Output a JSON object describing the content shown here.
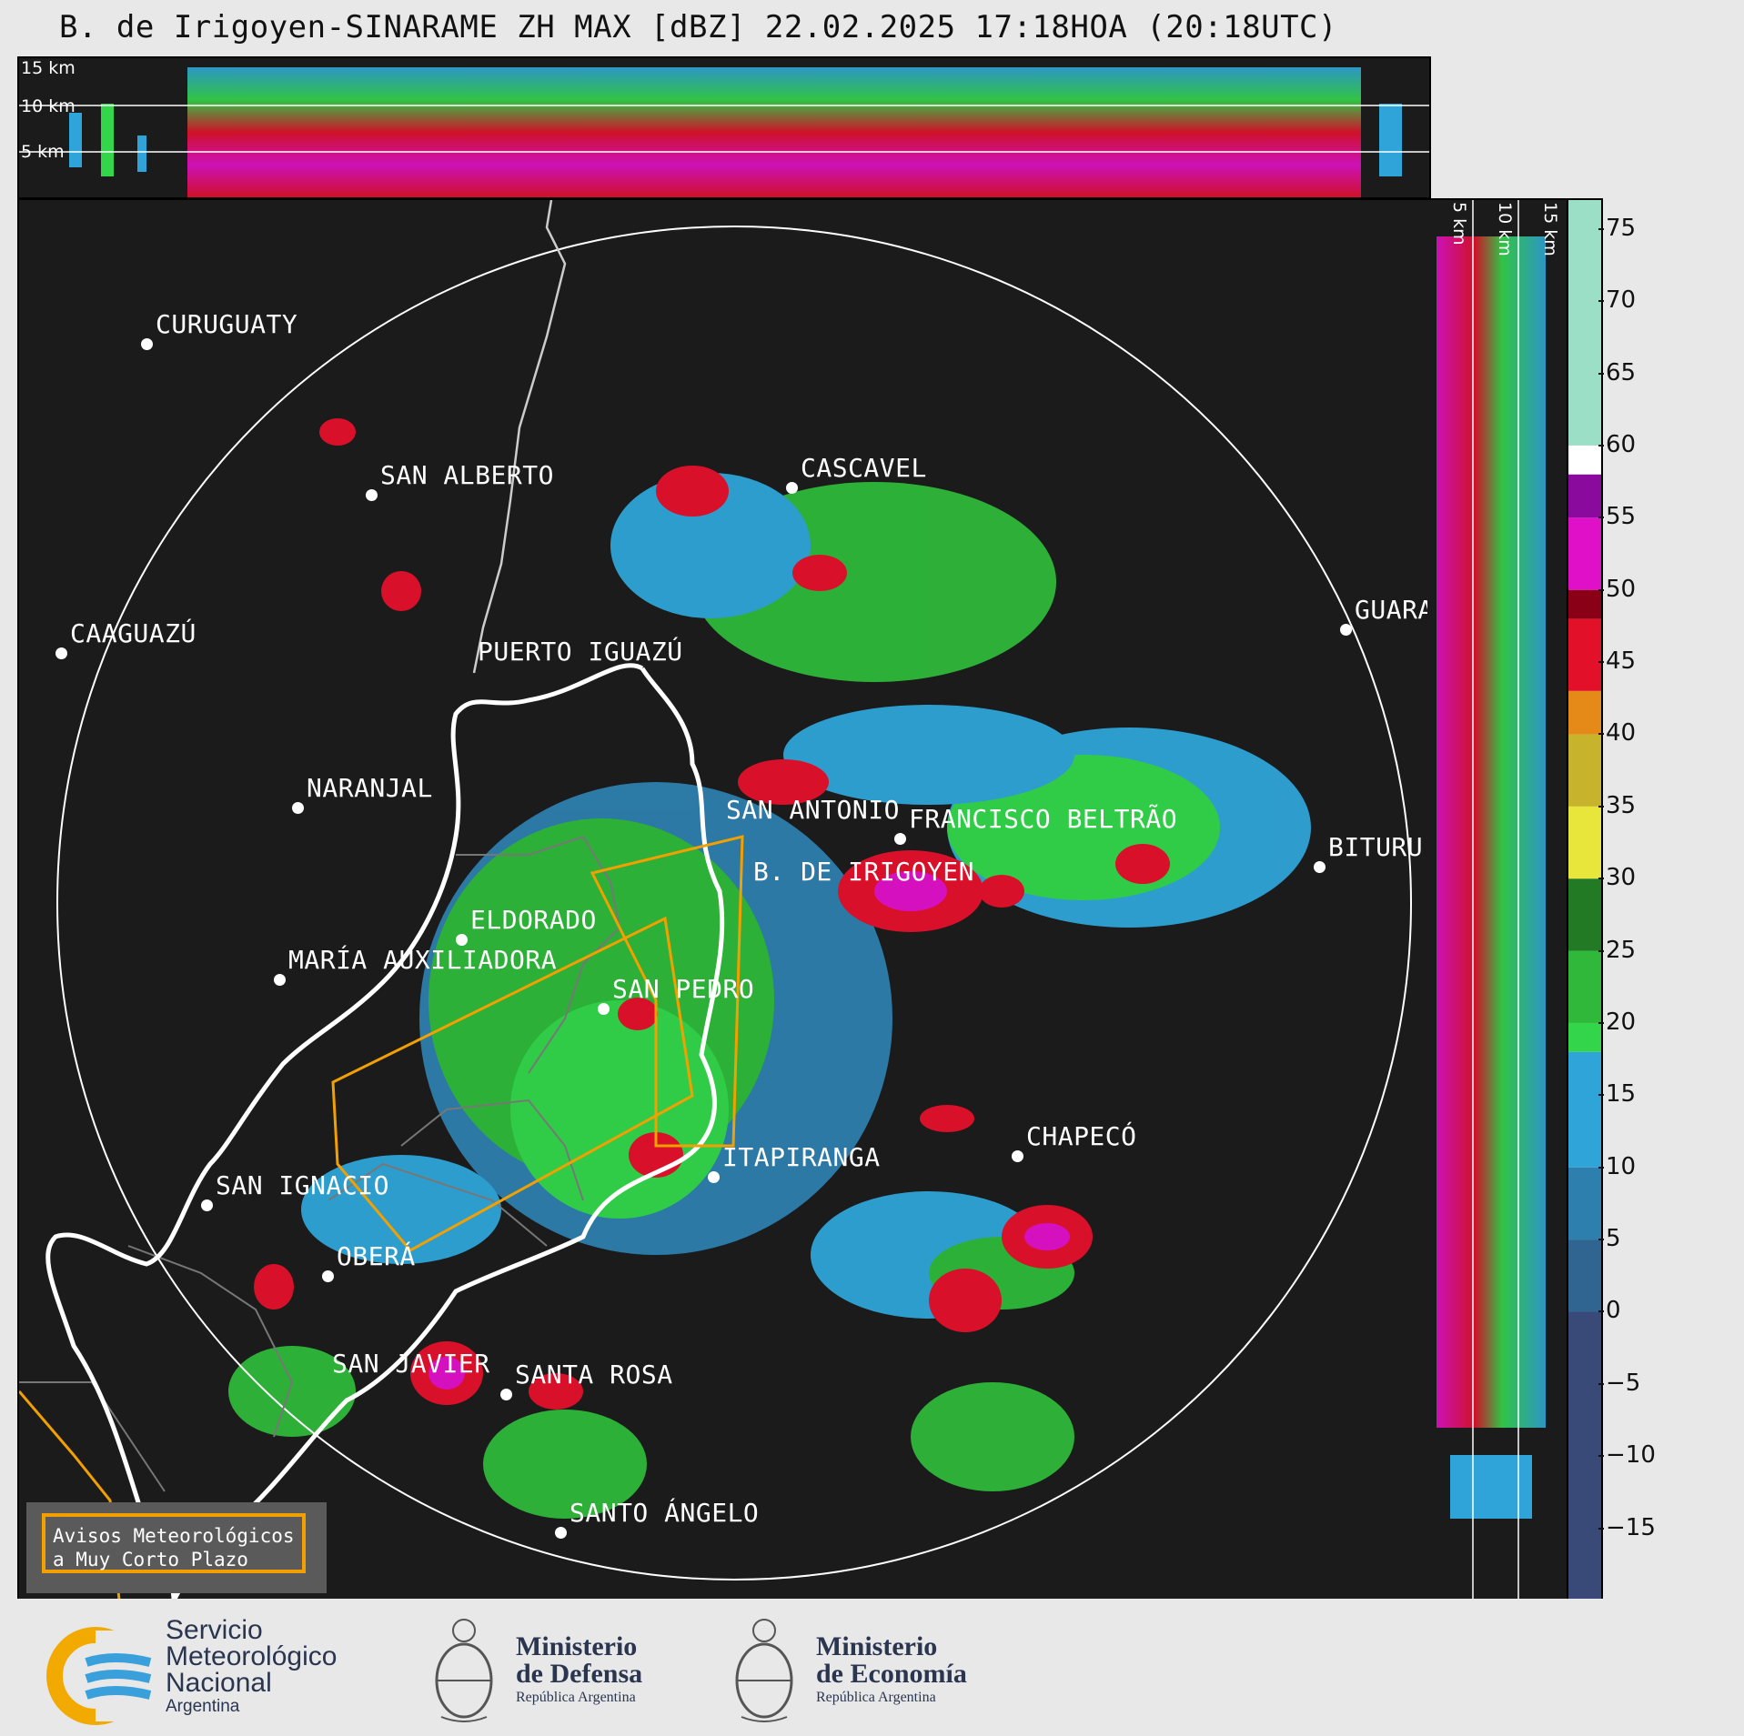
{
  "title": "B. de Irigoyen-SINARAME ZH MAX [dBZ] 22.02.2025 17:18HOA (20:18UTC)",
  "top_panel": {
    "altitude_labels": [
      "15 km",
      "10 km",
      "5 km"
    ]
  },
  "side_panel": {
    "altitude_labels": [
      "5 km",
      "10 km",
      "15 km"
    ]
  },
  "cities": [
    {
      "name": "CURUGUATY"
    },
    {
      "name": "SAN ALBERTO"
    },
    {
      "name": "CASCAVEL"
    },
    {
      "name": "CAAGUAZÚ"
    },
    {
      "name": "PUERTO IGUAZÚ"
    },
    {
      "name": "GUARA"
    },
    {
      "name": "NARANJAL"
    },
    {
      "name": "SAN ANTONIO"
    },
    {
      "name": "FRANCISCO BELTRÃO"
    },
    {
      "name": "BITURU"
    },
    {
      "name": "B. DE IRIGOYEN"
    },
    {
      "name": "ELDORADO"
    },
    {
      "name": "MARÍA AUXILIADORA"
    },
    {
      "name": "SAN PEDRO"
    },
    {
      "name": "CHAPECÓ"
    },
    {
      "name": "ITAPIRANGA"
    },
    {
      "name": "SAN IGNACIO"
    },
    {
      "name": "OBERÁ"
    },
    {
      "name": "SAN JAVIER"
    },
    {
      "name": "SANTA ROSA"
    },
    {
      "name": "SANTO ÁNGELO"
    }
  ],
  "legend": {
    "line1": "Avisos Meteorológicos",
    "line2": "a Muy Corto Plazo",
    "border_color": "#f2a000"
  },
  "colorbar": {
    "unit": "dBZ",
    "ticks": [
      "75",
      "70",
      "65",
      "60",
      "55",
      "50",
      "45",
      "40",
      "35",
      "30",
      "25",
      "20",
      "15",
      "10",
      "5",
      "0",
      "−5",
      "−10",
      "−15"
    ],
    "range": [
      -20,
      77
    ],
    "bands": [
      {
        "from": -20,
        "to": 0,
        "color": "#3a4a78"
      },
      {
        "from": 0,
        "to": 5,
        "color": "#2f6590"
      },
      {
        "from": 5,
        "to": 10,
        "color": "#2d7fae"
      },
      {
        "from": 10,
        "to": 18,
        "color": "#2fa4d8"
      },
      {
        "from": 18,
        "to": 20,
        "color": "#33d64a"
      },
      {
        "from": 20,
        "to": 25,
        "color": "#2fb83a"
      },
      {
        "from": 25,
        "to": 30,
        "color": "#237a25"
      },
      {
        "from": 30,
        "to": 35,
        "color": "#e8e63a"
      },
      {
        "from": 35,
        "to": 40,
        "color": "#c8b42c"
      },
      {
        "from": 40,
        "to": 43,
        "color": "#e58a18"
      },
      {
        "from": 43,
        "to": 48,
        "color": "#e3102a"
      },
      {
        "from": 48,
        "to": 50,
        "color": "#8a0016"
      },
      {
        "from": 50,
        "to": 55,
        "color": "#e010c8"
      },
      {
        "from": 55,
        "to": 58,
        "color": "#8a0a9e"
      },
      {
        "from": 58,
        "to": 60,
        "color": "#ffffff"
      },
      {
        "from": 60,
        "to": 77,
        "color": "#9adfc6"
      }
    ]
  },
  "footer": {
    "smn": {
      "line1": "Servicio",
      "line2": "Meteorológico",
      "line3": "Nacional",
      "line4": "Argentina"
    },
    "defensa": {
      "line1": "Ministerio",
      "line2": "de Defensa",
      "line3": "República Argentina"
    },
    "economia": {
      "line1": "Ministerio",
      "line2": "de Economía",
      "line3": "República Argentina"
    }
  }
}
